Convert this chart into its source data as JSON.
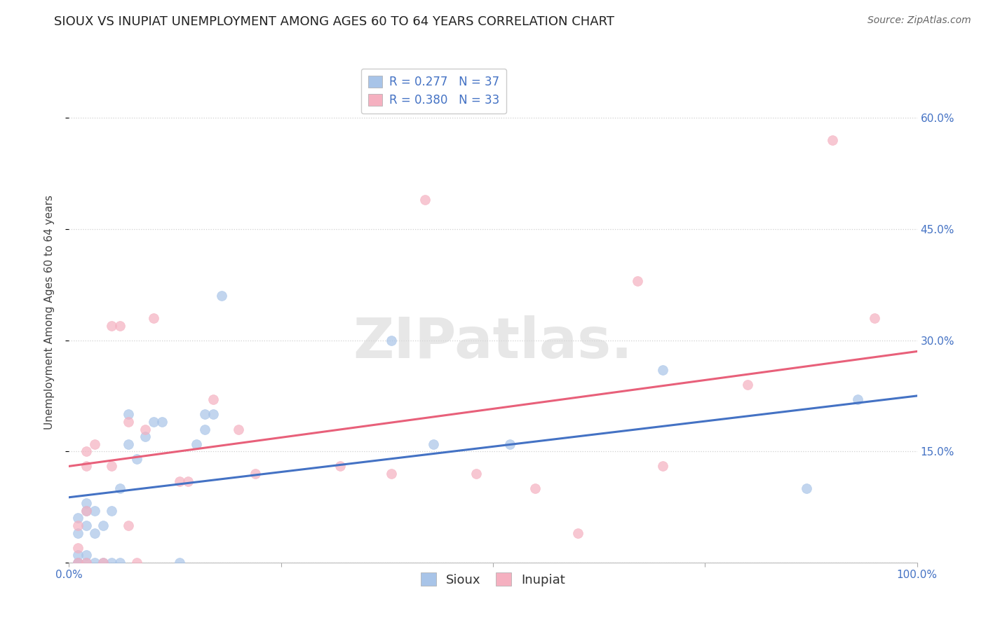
{
  "title": "SIOUX VS INUPIAT UNEMPLOYMENT AMONG AGES 60 TO 64 YEARS CORRELATION CHART",
  "source": "Source: ZipAtlas.com",
  "ylabel": "Unemployment Among Ages 60 to 64 years",
  "xlim": [
    0.0,
    1.0
  ],
  "ylim": [
    0.0,
    0.675
  ],
  "xticks": [
    0.0,
    0.25,
    0.5,
    0.75,
    1.0
  ],
  "xtick_labels": [
    "0.0%",
    "",
    "",
    "",
    "100.0%"
  ],
  "ytick_positions": [
    0.0,
    0.15,
    0.3,
    0.45,
    0.6
  ],
  "ytick_labels": [
    "",
    "15.0%",
    "30.0%",
    "45.0%",
    "60.0%"
  ],
  "sioux_color": "#a8c4e8",
  "inupiat_color": "#f5b0c0",
  "sioux_line_color": "#4472c4",
  "inupiat_line_color": "#e8607a",
  "legend_r_sioux": "R = 0.277",
  "legend_n_sioux": "N = 37",
  "legend_r_inupiat": "R = 0.380",
  "legend_n_inupiat": "N = 33",
  "sioux_x": [
    0.01,
    0.01,
    0.01,
    0.01,
    0.01,
    0.02,
    0.02,
    0.02,
    0.02,
    0.02,
    0.03,
    0.03,
    0.03,
    0.04,
    0.04,
    0.05,
    0.05,
    0.06,
    0.06,
    0.07,
    0.07,
    0.08,
    0.09,
    0.1,
    0.11,
    0.13,
    0.15,
    0.16,
    0.16,
    0.17,
    0.18,
    0.38,
    0.43,
    0.52,
    0.7,
    0.87,
    0.93
  ],
  "sioux_y": [
    0.0,
    0.0,
    0.01,
    0.04,
    0.06,
    0.0,
    0.01,
    0.05,
    0.07,
    0.08,
    0.0,
    0.04,
    0.07,
    0.0,
    0.05,
    0.0,
    0.07,
    0.0,
    0.1,
    0.16,
    0.2,
    0.14,
    0.17,
    0.19,
    0.19,
    0.0,
    0.16,
    0.18,
    0.2,
    0.2,
    0.36,
    0.3,
    0.16,
    0.16,
    0.26,
    0.1,
    0.22
  ],
  "inupiat_x": [
    0.01,
    0.01,
    0.01,
    0.02,
    0.02,
    0.02,
    0.02,
    0.03,
    0.04,
    0.05,
    0.05,
    0.06,
    0.07,
    0.07,
    0.08,
    0.09,
    0.1,
    0.13,
    0.14,
    0.17,
    0.2,
    0.22,
    0.32,
    0.38,
    0.42,
    0.48,
    0.55,
    0.6,
    0.67,
    0.7,
    0.8,
    0.9,
    0.95
  ],
  "inupiat_y": [
    0.0,
    0.02,
    0.05,
    0.0,
    0.07,
    0.13,
    0.15,
    0.16,
    0.0,
    0.13,
    0.32,
    0.32,
    0.05,
    0.19,
    0.0,
    0.18,
    0.33,
    0.11,
    0.11,
    0.22,
    0.18,
    0.12,
    0.13,
    0.12,
    0.49,
    0.12,
    0.1,
    0.04,
    0.38,
    0.13,
    0.24,
    0.57,
    0.33
  ],
  "line_sioux_x0": 0.0,
  "line_sioux_x1": 1.0,
  "line_sioux_y0": 0.088,
  "line_sioux_y1": 0.225,
  "line_inupiat_x0": 0.0,
  "line_inupiat_x1": 1.0,
  "line_inupiat_y0": 0.13,
  "line_inupiat_y1": 0.285,
  "watermark_text": "ZIPatlas.",
  "background_color": "#ffffff",
  "grid_color": "#d0d0d0",
  "title_fontsize": 13,
  "axis_label_fontsize": 11,
  "tick_fontsize": 11,
  "legend_fontsize": 12,
  "source_fontsize": 10
}
